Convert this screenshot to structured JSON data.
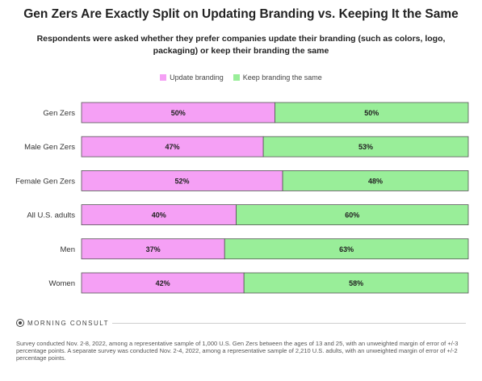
{
  "chart_data": {
    "type": "bar",
    "orientation": "horizontal",
    "stacked": true,
    "title": "Gen Zers Are Exactly Split on Updating Branding vs. Keeping It the Same",
    "subtitle": "Respondents were asked whether they prefer companies update their branding (such as colors, logo, packaging) or keep their branding the same",
    "categories": [
      "Gen Zers",
      "Male Gen Zers",
      "Female Gen Zers",
      "All U.S. adults",
      "Men",
      "Women"
    ],
    "series": [
      {
        "name": "Update branding",
        "color": "#f5a0f5",
        "values": [
          50,
          47,
          52,
          40,
          37,
          42
        ]
      },
      {
        "name": "Keep branding the same",
        "color": "#99ee99",
        "values": [
          50,
          53,
          48,
          60,
          63,
          58
        ]
      }
    ],
    "xlim": [
      0,
      100
    ],
    "unit": "%",
    "legend_position": "top-center",
    "grid": false
  },
  "footer": {
    "brand": "MORNING CONSULT",
    "note": "Survey conducted Nov. 2-8, 2022, among a representative sample of 1,000 U.S. Gen Zers between the ages of 13 and 25, with an unweighted margin of error of +/-3 percentage points. A separate survey was conducted Nov. 2-4, 2022, among a representative sample of 2,210 U.S. adults, with an unweighted margin of error of +/-2 percentage points."
  }
}
